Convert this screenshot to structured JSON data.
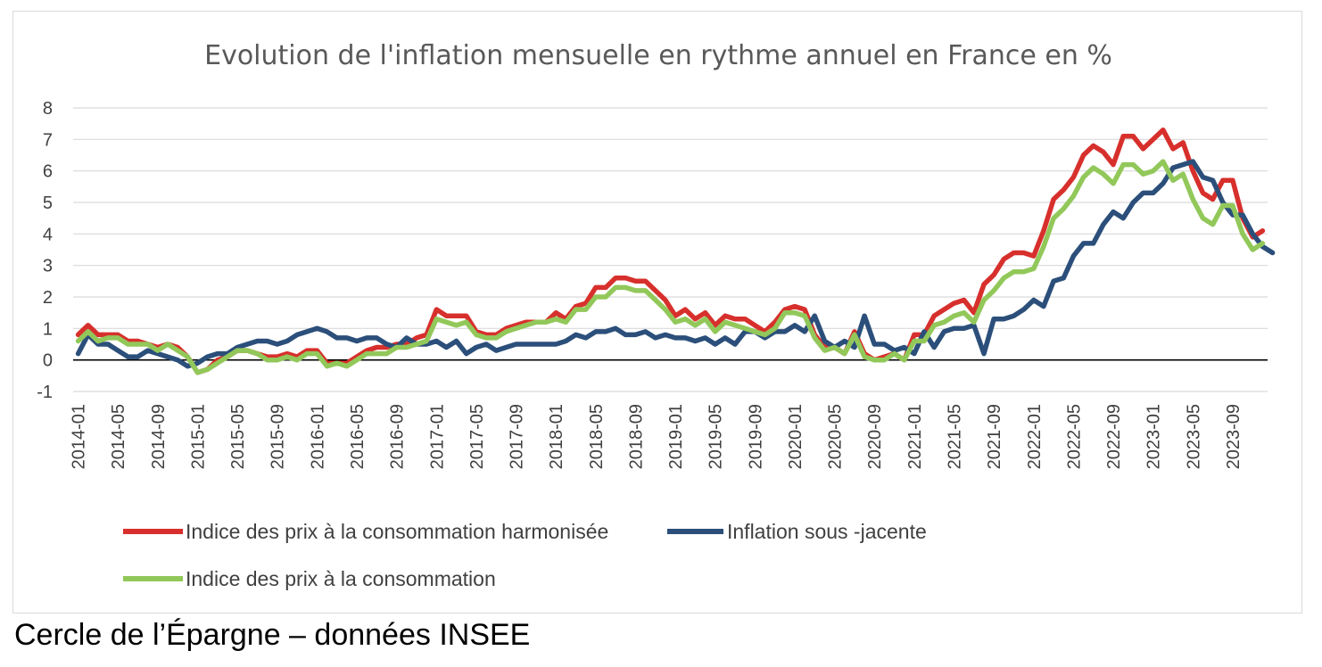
{
  "source": "Cercle de l’Épargne – données INSEE",
  "chart_data": {
    "type": "line",
    "title": "Evolution de l'inflation mensuelle en rythme annuel en France en %",
    "xlabel": "",
    "ylabel": "",
    "ylim": [
      -1,
      8
    ],
    "yticks": [
      -1,
      0,
      1,
      2,
      3,
      4,
      5,
      6,
      7,
      8
    ],
    "grid": true,
    "legend_position": "bottom",
    "x_start": "2014-01",
    "x_end": "2023-12",
    "xtick_labels": [
      "2014-01",
      "2014-05",
      "2014-09",
      "2015-01",
      "2015-05",
      "2015-09",
      "2016-01",
      "2016-05",
      "2016-09",
      "2017-01",
      "2017-05",
      "2017-09",
      "2018-01",
      "2018-05",
      "2018-09",
      "2019-01",
      "2019-05",
      "2019-09",
      "2020-01",
      "2020-05",
      "2020-09",
      "2021-01",
      "2021-05",
      "2021-09",
      "2022-01",
      "2022-05",
      "2022-09",
      "2023-01",
      "2023-05",
      "2023-09"
    ],
    "series": [
      {
        "name": "Indice des prix à la consommation harmonisée",
        "color": "#d7302c",
        "values": [
          0.8,
          1.1,
          0.8,
          0.8,
          0.8,
          0.6,
          0.6,
          0.5,
          0.4,
          0.5,
          0.4,
          0.1,
          -0.4,
          -0.3,
          0.0,
          0.1,
          0.3,
          0.3,
          0.2,
          0.1,
          0.1,
          0.2,
          0.1,
          0.3,
          0.3,
          -0.1,
          -0.1,
          -0.1,
          0.1,
          0.3,
          0.4,
          0.4,
          0.5,
          0.5,
          0.7,
          0.8,
          1.6,
          1.4,
          1.4,
          1.4,
          0.9,
          0.8,
          0.8,
          1.0,
          1.1,
          1.2,
          1.2,
          1.2,
          1.5,
          1.3,
          1.7,
          1.8,
          2.3,
          2.3,
          2.6,
          2.6,
          2.5,
          2.5,
          2.2,
          1.9,
          1.4,
          1.6,
          1.3,
          1.5,
          1.1,
          1.4,
          1.3,
          1.3,
          1.1,
          0.9,
          1.2,
          1.6,
          1.7,
          1.6,
          0.8,
          0.4,
          0.4,
          0.2,
          0.9,
          0.2,
          0.0,
          0.1,
          0.2,
          0.0,
          0.8,
          0.8,
          1.4,
          1.6,
          1.8,
          1.9,
          1.5,
          2.4,
          2.7,
          3.2,
          3.4,
          3.4,
          3.3,
          4.1,
          5.1,
          5.4,
          5.8,
          6.5,
          6.8,
          6.6,
          6.2,
          7.1,
          7.1,
          6.7,
          7.0,
          7.3,
          6.7,
          6.9,
          6.0,
          5.3,
          5.1,
          5.7,
          5.7,
          4.5,
          3.9,
          4.1
        ]
      },
      {
        "name": "Inflation sous -jacente",
        "color": "#2b4f7a",
        "values": [
          0.2,
          0.8,
          0.5,
          0.5,
          0.3,
          0.1,
          0.1,
          0.3,
          0.2,
          0.1,
          0.0,
          -0.2,
          -0.1,
          0.1,
          0.2,
          0.2,
          0.4,
          0.5,
          0.6,
          0.6,
          0.5,
          0.6,
          0.8,
          0.9,
          1.0,
          0.9,
          0.7,
          0.7,
          0.6,
          0.7,
          0.7,
          0.5,
          0.4,
          0.7,
          0.5,
          0.5,
          0.6,
          0.4,
          0.6,
          0.2,
          0.4,
          0.5,
          0.3,
          0.4,
          0.5,
          0.5,
          0.5,
          0.5,
          0.5,
          0.6,
          0.8,
          0.7,
          0.9,
          0.9,
          1.0,
          0.8,
          0.8,
          0.9,
          0.7,
          0.8,
          0.7,
          0.7,
          0.6,
          0.7,
          0.5,
          0.7,
          0.5,
          0.9,
          0.9,
          0.7,
          0.9,
          0.9,
          1.1,
          0.9,
          1.4,
          0.6,
          0.4,
          0.6,
          0.4,
          1.4,
          0.5,
          0.5,
          0.3,
          0.4,
          0.2,
          0.9,
          0.4,
          0.9,
          1.0,
          1.0,
          1.1,
          0.2,
          1.3,
          1.3,
          1.4,
          1.6,
          1.9,
          1.7,
          2.5,
          2.6,
          3.3,
          3.7,
          3.7,
          4.3,
          4.7,
          4.5,
          5.0,
          5.3,
          5.3,
          5.6,
          6.1,
          6.2,
          6.3,
          5.8,
          5.7,
          5.0,
          4.6,
          4.6,
          4.0,
          3.6,
          3.4
        ]
      },
      {
        "name": "Indice des prix à la consommation",
        "color": "#92c85a",
        "values": [
          0.6,
          0.9,
          0.6,
          0.7,
          0.7,
          0.5,
          0.5,
          0.5,
          0.3,
          0.5,
          0.3,
          0.1,
          -0.4,
          -0.3,
          -0.1,
          0.1,
          0.3,
          0.3,
          0.2,
          0.0,
          0.0,
          0.1,
          0.0,
          0.2,
          0.2,
          -0.2,
          -0.1,
          -0.2,
          0.0,
          0.2,
          0.2,
          0.2,
          0.4,
          0.4,
          0.5,
          0.6,
          1.3,
          1.2,
          1.1,
          1.2,
          0.8,
          0.7,
          0.7,
          0.9,
          1.0,
          1.1,
          1.2,
          1.2,
          1.3,
          1.2,
          1.6,
          1.6,
          2.0,
          2.0,
          2.3,
          2.3,
          2.2,
          2.2,
          1.9,
          1.6,
          1.2,
          1.3,
          1.1,
          1.3,
          0.9,
          1.2,
          1.1,
          1.0,
          0.9,
          0.8,
          1.0,
          1.5,
          1.5,
          1.4,
          0.7,
          0.3,
          0.4,
          0.2,
          0.8,
          0.1,
          0.0,
          0.0,
          0.2,
          0.0,
          0.6,
          0.6,
          1.1,
          1.2,
          1.4,
          1.5,
          1.2,
          1.9,
          2.2,
          2.6,
          2.8,
          2.8,
          2.9,
          3.6,
          4.5,
          4.8,
          5.2,
          5.8,
          6.1,
          5.9,
          5.6,
          6.2,
          6.2,
          5.9,
          6.0,
          6.3,
          5.7,
          5.9,
          5.1,
          4.5,
          4.3,
          4.9,
          4.9,
          4.0,
          3.5,
          3.7
        ]
      }
    ]
  }
}
